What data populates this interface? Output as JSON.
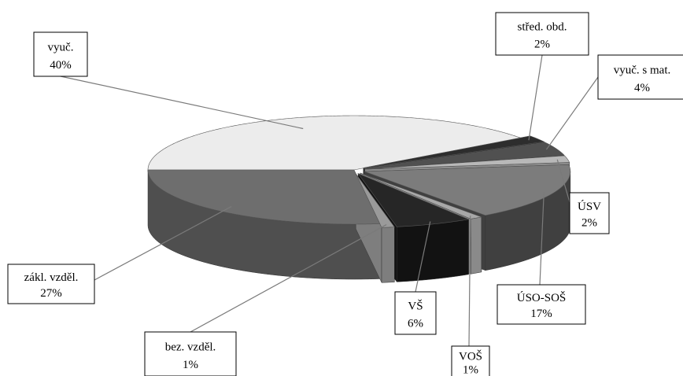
{
  "chart_data": {
    "type": "pie",
    "style": "3d-exploded",
    "slices": [
      {
        "label": "vyuč.",
        "value": 40,
        "display": "40%",
        "color": "#ececec",
        "side": "#bdbdbd"
      },
      {
        "label": "střed. obd.",
        "value": 2,
        "display": "2%",
        "color": "#2d2d2d",
        "side": "#1e1e1e"
      },
      {
        "label": "vyuč. s mat.",
        "value": 4,
        "display": "4%",
        "color": "#505050",
        "side": "#363636"
      },
      {
        "label": "ÚSV",
        "value": 2,
        "display": "2%",
        "color": "#b8b8b8",
        "side": "#8c8c8c"
      },
      {
        "label": "ÚSO-SOŠ",
        "value": 17,
        "display": "17%",
        "color": "#7c7c7c",
        "side": "#404040"
      },
      {
        "label": "VOŠ",
        "value": 1,
        "display": "1%",
        "color": "#a8a8a8",
        "side": "#8a8a8a"
      },
      {
        "label": "VŠ",
        "value": 6,
        "display": "6%",
        "color": "#262626",
        "side": "#121212"
      },
      {
        "label": "bez. vzděl.",
        "value": 1,
        "display": "1%",
        "color": "#9a9a9a",
        "side": "#7e7e7e"
      },
      {
        "label": "zákl. vzděl.",
        "value": 27,
        "display": "27%",
        "color": "#6e6e6e",
        "side": "#4f4f4f"
      }
    ]
  }
}
